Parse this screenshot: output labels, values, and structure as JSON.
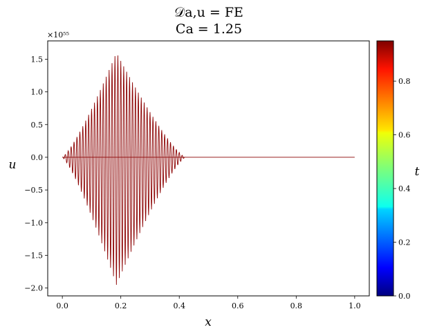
{
  "chart_data": {
    "type": "line",
    "title_line1": "𝒟a,u = FE",
    "title_line2": "Ca = 1.25",
    "xlabel": "x",
    "ylabel": "u",
    "colorbar_label": "t",
    "y_scale_label": "×10⁵⁵",
    "xlim": [
      -0.05,
      1.05
    ],
    "ylim": [
      -2.12,
      1.78
    ],
    "x_ticks": [
      0.0,
      0.2,
      0.4,
      0.6,
      0.8,
      1.0
    ],
    "x_tick_labels": [
      "0.0",
      "0.2",
      "0.4",
      "0.6",
      "0.8",
      "1.0"
    ],
    "y_ticks": [
      1.5,
      1.0,
      0.5,
      0.0,
      -0.5,
      -1.0,
      -1.5,
      -2.0
    ],
    "y_tick_labels": [
      "1.5",
      "1.0",
      "0.5",
      "0.0",
      "−0.5",
      "−1.0",
      "−1.5",
      "−2.0"
    ],
    "colorbar_range": [
      0.0,
      0.95
    ],
    "colorbar_ticks": [
      0.0,
      0.2,
      0.4,
      0.6,
      0.8
    ],
    "colorbar_tick_labels": [
      "0.0",
      "0.2",
      "0.4",
      "0.6",
      "0.8"
    ],
    "colormap": "jet",
    "line_color": "#8b0000",
    "x_domain": [
      0.0,
      1.0
    ],
    "oscillation": {
      "extent_x": [
        0.0,
        0.42
      ],
      "peak_x": 0.185,
      "peak_max": 1.6,
      "peak_min": -1.95,
      "num_cycles": 42
    },
    "flat_region": {
      "x": [
        0.42,
        1.0
      ],
      "y": 0.0
    }
  }
}
